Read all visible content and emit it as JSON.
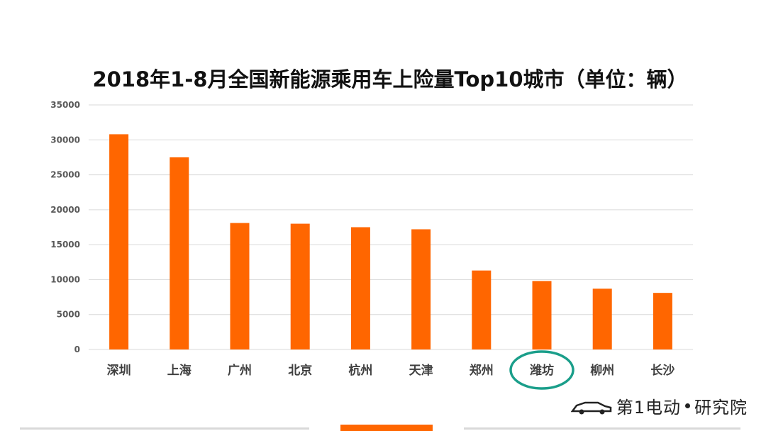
{
  "chart_data": {
    "type": "bar",
    "title": "2018年1-8月全国新能源乘用车上险量Top10城市（单位：辆）",
    "categories": [
      "深圳",
      "上海",
      "广州",
      "北京",
      "杭州",
      "天津",
      "郑州",
      "潍坊",
      "柳州",
      "长沙"
    ],
    "values": [
      30800,
      27500,
      18100,
      18000,
      17500,
      17200,
      11300,
      9800,
      8700,
      8100
    ],
    "ylim": [
      0,
      35000
    ],
    "yticks": [
      0,
      5000,
      10000,
      15000,
      20000,
      25000,
      30000,
      35000
    ],
    "grid": true,
    "legend": "none",
    "bar_color": "#ff6600",
    "highlight_category": "潍坊",
    "highlight_color": "#1a9e8a"
  },
  "brand": {
    "logo_text": "第1电动",
    "suffix": "研究院"
  }
}
